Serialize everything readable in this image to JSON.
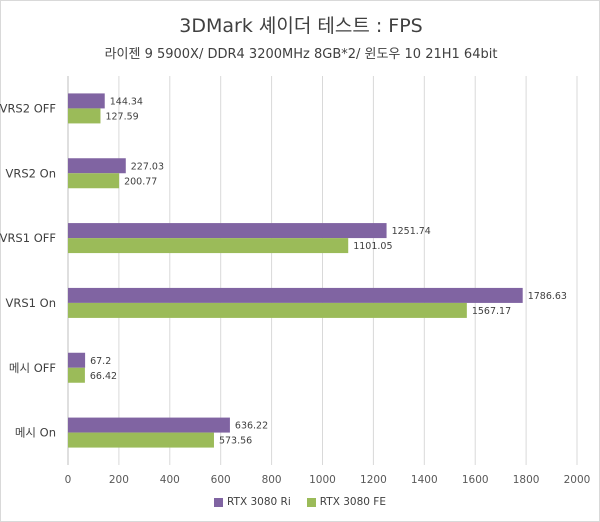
{
  "colors": {
    "series0": "#8064a2",
    "series1": "#9bbb59",
    "grid": "#d9d9d9",
    "axis": "#bfbfbf"
  },
  "chart_data": {
    "type": "bar",
    "orientation": "horizontal",
    "title": "3DMark 셰이더 테스트 : FPS",
    "subtitle": "라이젠 9 5900X/ DDR4 3200MHz 8GB*2/ 윈도우 10 21H1 64bit",
    "categories": [
      "VRS2 OFF",
      "VRS2 On",
      "VRS1 OFF",
      "VRS1 On",
      "메시 OFF",
      "메시 On"
    ],
    "series": [
      {
        "name": "RTX 3080 Ri",
        "values": [
          144.34,
          227.03,
          1251.74,
          1786.63,
          67.2,
          636.22
        ]
      },
      {
        "name": "RTX 3080 FE",
        "values": [
          127.59,
          200.77,
          1101.05,
          1567.17,
          66.42,
          573.56
        ]
      }
    ],
    "xlim": [
      0,
      2000
    ],
    "xticks": [
      0,
      200,
      400,
      600,
      800,
      1000,
      1200,
      1400,
      1600,
      1800,
      2000
    ],
    "grid": "vertical",
    "legend": "bottom"
  }
}
